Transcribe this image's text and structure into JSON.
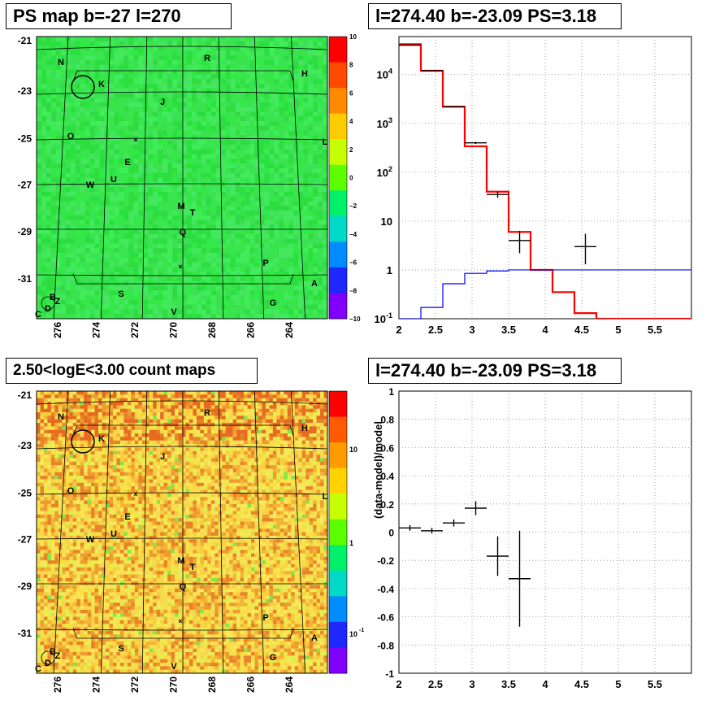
{
  "panels": {
    "map_ps": {
      "title": "PS map b=-27 l=270",
      "lat_labels": [
        "-21",
        "-23",
        "-25",
        "-27",
        "-29",
        "-31"
      ],
      "lon_labels": [
        "276",
        "274",
        "272",
        "270",
        "268",
        "266",
        "264"
      ],
      "colorbar_labels": [
        "10",
        "8",
        "6",
        "4",
        "2",
        "0",
        "−2",
        "−4",
        "−6",
        "−8",
        "−10"
      ],
      "colorbar_colors": [
        "#ff0000",
        "#ff4a00",
        "#ff8a00",
        "#ffcc00",
        "#c8ff00",
        "#5cff00",
        "#00f06a",
        "#00d8c8",
        "#008cff",
        "#1e28ff",
        "#8000ff"
      ],
      "background_color": "#34e84a"
    },
    "map_counts": {
      "title": "2.50<logE<3.00 count maps",
      "lat_labels": [
        "-21",
        "-23",
        "-25",
        "-27",
        "-29",
        "-31"
      ],
      "lon_labels": [
        "276",
        "274",
        "272",
        "270",
        "268",
        "266",
        "264"
      ],
      "colorbar_labels": [
        "10",
        "1",
        "10",
        "-1"
      ],
      "colorbar_colors": [
        "#ff0000",
        "#ff5a00",
        "#ff9a00",
        "#ffd200",
        "#c8ff00",
        "#5cff00",
        "#00f06a",
        "#00d8c8",
        "#008cff",
        "#1e28ff",
        "#8000ff"
      ],
      "background_color": "#f5c840"
    },
    "source_labels": [
      "N",
      "K",
      "R",
      "H",
      "J",
      "O",
      "L",
      "E",
      "U",
      "W",
      "M",
      "T",
      "Q",
      "P",
      "A",
      "S",
      "G",
      "V",
      "B",
      "Z",
      "D",
      "C"
    ]
  },
  "chart_data": [
    {
      "type": "line",
      "title": "l=274.40 b=-23.09 PS=3.18",
      "xlabel": "",
      "ylabel": "",
      "xlim": [
        2,
        6
      ],
      "ylim": [
        0.1,
        60000
      ],
      "log_y": true,
      "grid": true,
      "x_ticks": [
        "2",
        "2.5",
        "3",
        "3.5",
        "4",
        "4.5",
        "5",
        "5.5"
      ],
      "y_ticks": [
        "10^{-1}",
        "1",
        "10",
        "10^{2}",
        "10^{3}",
        "10^{4}"
      ],
      "series": [
        {
          "kind": "step",
          "color": "#ff0000",
          "edges": [
            2,
            2.3,
            2.6,
            2.9,
            3.2,
            3.5,
            3.8,
            4.1,
            4.4,
            4.7,
            5.0,
            6.0
          ],
          "values": [
            42000,
            12000,
            2200,
            340,
            40,
            6,
            1,
            0.35,
            0.13,
            0.1,
            0.1
          ]
        },
        {
          "kind": "step",
          "color": "#0000ff",
          "edges": [
            2,
            2.3,
            2.6,
            2.9,
            3.2,
            3.5,
            3.8,
            6.0
          ],
          "values": [
            0.1,
            0.17,
            0.52,
            0.85,
            0.95,
            1.0,
            1.0
          ]
        },
        {
          "kind": "data",
          "color": "#000000",
          "x": [
            2.15,
            2.45,
            2.75,
            3.05,
            3.35,
            3.65,
            3.95,
            4.25,
            4.55
          ],
          "xerr": [
            0.15,
            0.15,
            0.15,
            0.15,
            0.15,
            0.15,
            0.15,
            0.15,
            0.15
          ],
          "y": [
            40000,
            12000,
            2200,
            400,
            35,
            4,
            null,
            null,
            3
          ],
          "ylow": [
            39800,
            11900,
            2150,
            380,
            30,
            2.2,
            null,
            null,
            1.3
          ],
          "yhigh": [
            40200,
            12100,
            2250,
            420,
            40,
            6.3,
            null,
            null,
            5.5
          ]
        }
      ]
    },
    {
      "type": "scatter",
      "title": "l=274.40 b=-23.09 PS=3.18",
      "xlabel": "",
      "ylabel": "(data-model)/model",
      "xlim": [
        2,
        6
      ],
      "ylim": [
        -1,
        1
      ],
      "grid": true,
      "x_ticks": [
        "2",
        "2.5",
        "3",
        "3.5",
        "4",
        "4.5",
        "5",
        "5.5"
      ],
      "y_ticks": [
        "-1",
        "-0.8",
        "-0.6",
        "-0.4",
        "-0.2",
        "0",
        "0.2",
        "0.4",
        "0.6",
        "0.8",
        "1"
      ],
      "points": {
        "x": [
          2.15,
          2.45,
          2.75,
          3.05,
          3.35,
          3.65
        ],
        "xerr": [
          0.15,
          0.15,
          0.15,
          0.15,
          0.15,
          0.15
        ],
        "y": [
          0.03,
          0.01,
          0.065,
          0.17,
          -0.17,
          -0.33
        ],
        "ylow": [
          0.01,
          -0.01,
          0.04,
          0.12,
          -0.31,
          -0.67
        ],
        "yhigh": [
          0.05,
          0.03,
          0.09,
          0.22,
          -0.03,
          0.01
        ]
      }
    }
  ]
}
